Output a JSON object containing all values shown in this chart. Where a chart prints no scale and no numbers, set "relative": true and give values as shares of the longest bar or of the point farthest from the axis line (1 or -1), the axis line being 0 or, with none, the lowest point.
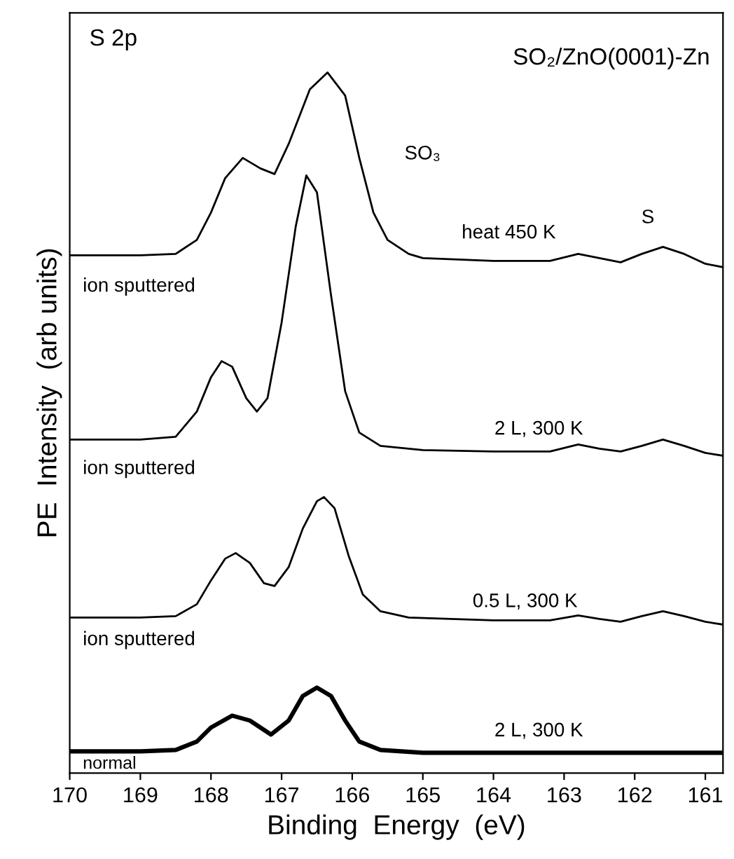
{
  "chart_data": {
    "type": "line",
    "relative": true,
    "xlabel": "Binding  Energy  (eV)",
    "ylabel": "PE  Intensity  (arb units)",
    "xlim": [
      170,
      160.75
    ],
    "xticks": [
      170,
      169,
      168,
      167,
      166,
      165,
      164,
      163,
      162,
      161
    ],
    "grid": false,
    "marker": "none",
    "line_style": "solid",
    "x": [
      170,
      169,
      168.5,
      168.2,
      168,
      167.8,
      167.55,
      167.3,
      167.1,
      166.9,
      166.6,
      166.35,
      166.1,
      165.9,
      165.7,
      165.5,
      165.2,
      165,
      164,
      163.2,
      162.8,
      162.5,
      162.2,
      161.9,
      161.6,
      161.3,
      161,
      160.75
    ],
    "series": [
      {
        "color": "#000000",
        "values": [
          0.739,
          0.739,
          0.741,
          0.761,
          0.8,
          0.849,
          0.878,
          0.863,
          0.855,
          0.898,
          0.976,
          1.0,
          0.967,
          0.878,
          0.8,
          0.761,
          0.741,
          0.735,
          0.731,
          0.731,
          0.741,
          0.735,
          0.729,
          0.741,
          0.751,
          0.741,
          0.727,
          0.722
        ]
      },
      {
        "color": "#000000",
        "x": [
          170,
          169,
          168.5,
          168.2,
          168,
          167.85,
          167.7,
          167.5,
          167.35,
          167.2,
          167,
          166.8,
          166.65,
          166.5,
          166.3,
          166.1,
          165.9,
          165.6,
          165,
          164,
          163.2,
          162.8,
          162.5,
          162.2,
          161.9,
          161.6,
          161.3,
          161,
          160.75
        ],
        "values": [
          0.476,
          0.476,
          0.48,
          0.516,
          0.565,
          0.588,
          0.58,
          0.535,
          0.516,
          0.535,
          0.643,
          0.78,
          0.853,
          0.829,
          0.682,
          0.545,
          0.486,
          0.467,
          0.461,
          0.459,
          0.459,
          0.469,
          0.463,
          0.459,
          0.467,
          0.476,
          0.467,
          0.457,
          0.453
        ]
      },
      {
        "color": "#000000",
        "x": [
          170,
          169,
          168.5,
          168.2,
          168,
          167.8,
          167.65,
          167.45,
          167.25,
          167.1,
          166.9,
          166.7,
          166.5,
          166.4,
          166.25,
          166.05,
          165.85,
          165.6,
          165.2,
          164,
          163.2,
          162.8,
          162.5,
          162.2,
          161.9,
          161.6,
          161.3,
          161,
          160.75
        ],
        "values": [
          0.222,
          0.222,
          0.224,
          0.241,
          0.275,
          0.306,
          0.314,
          0.3,
          0.271,
          0.267,
          0.294,
          0.349,
          0.388,
          0.394,
          0.378,
          0.31,
          0.255,
          0.231,
          0.222,
          0.218,
          0.218,
          0.225,
          0.22,
          0.216,
          0.224,
          0.231,
          0.224,
          0.216,
          0.212
        ]
      },
      {
        "color": "#000000",
        "x": [
          170,
          169,
          168.5,
          168.2,
          168,
          167.7,
          167.45,
          167.15,
          166.9,
          166.7,
          166.5,
          166.3,
          166.1,
          165.9,
          165.6,
          165,
          164,
          162,
          161,
          160.75
        ],
        "values": [
          0.031,
          0.031,
          0.033,
          0.045,
          0.065,
          0.082,
          0.075,
          0.055,
          0.075,
          0.11,
          0.122,
          0.11,
          0.075,
          0.045,
          0.033,
          0.029,
          0.029,
          0.029,
          0.029,
          0.029
        ]
      }
    ],
    "annotations": [
      "S 2p",
      "SO₂/ZnO(0001)-Zn",
      "SO₃",
      "S",
      "heat 450 K",
      "ion sputtered",
      "2 L, 300 K",
      "ion sputtered",
      "0.5 L, 300 K",
      "ion sputtered",
      "2 L, 300 K",
      "normal"
    ]
  }
}
